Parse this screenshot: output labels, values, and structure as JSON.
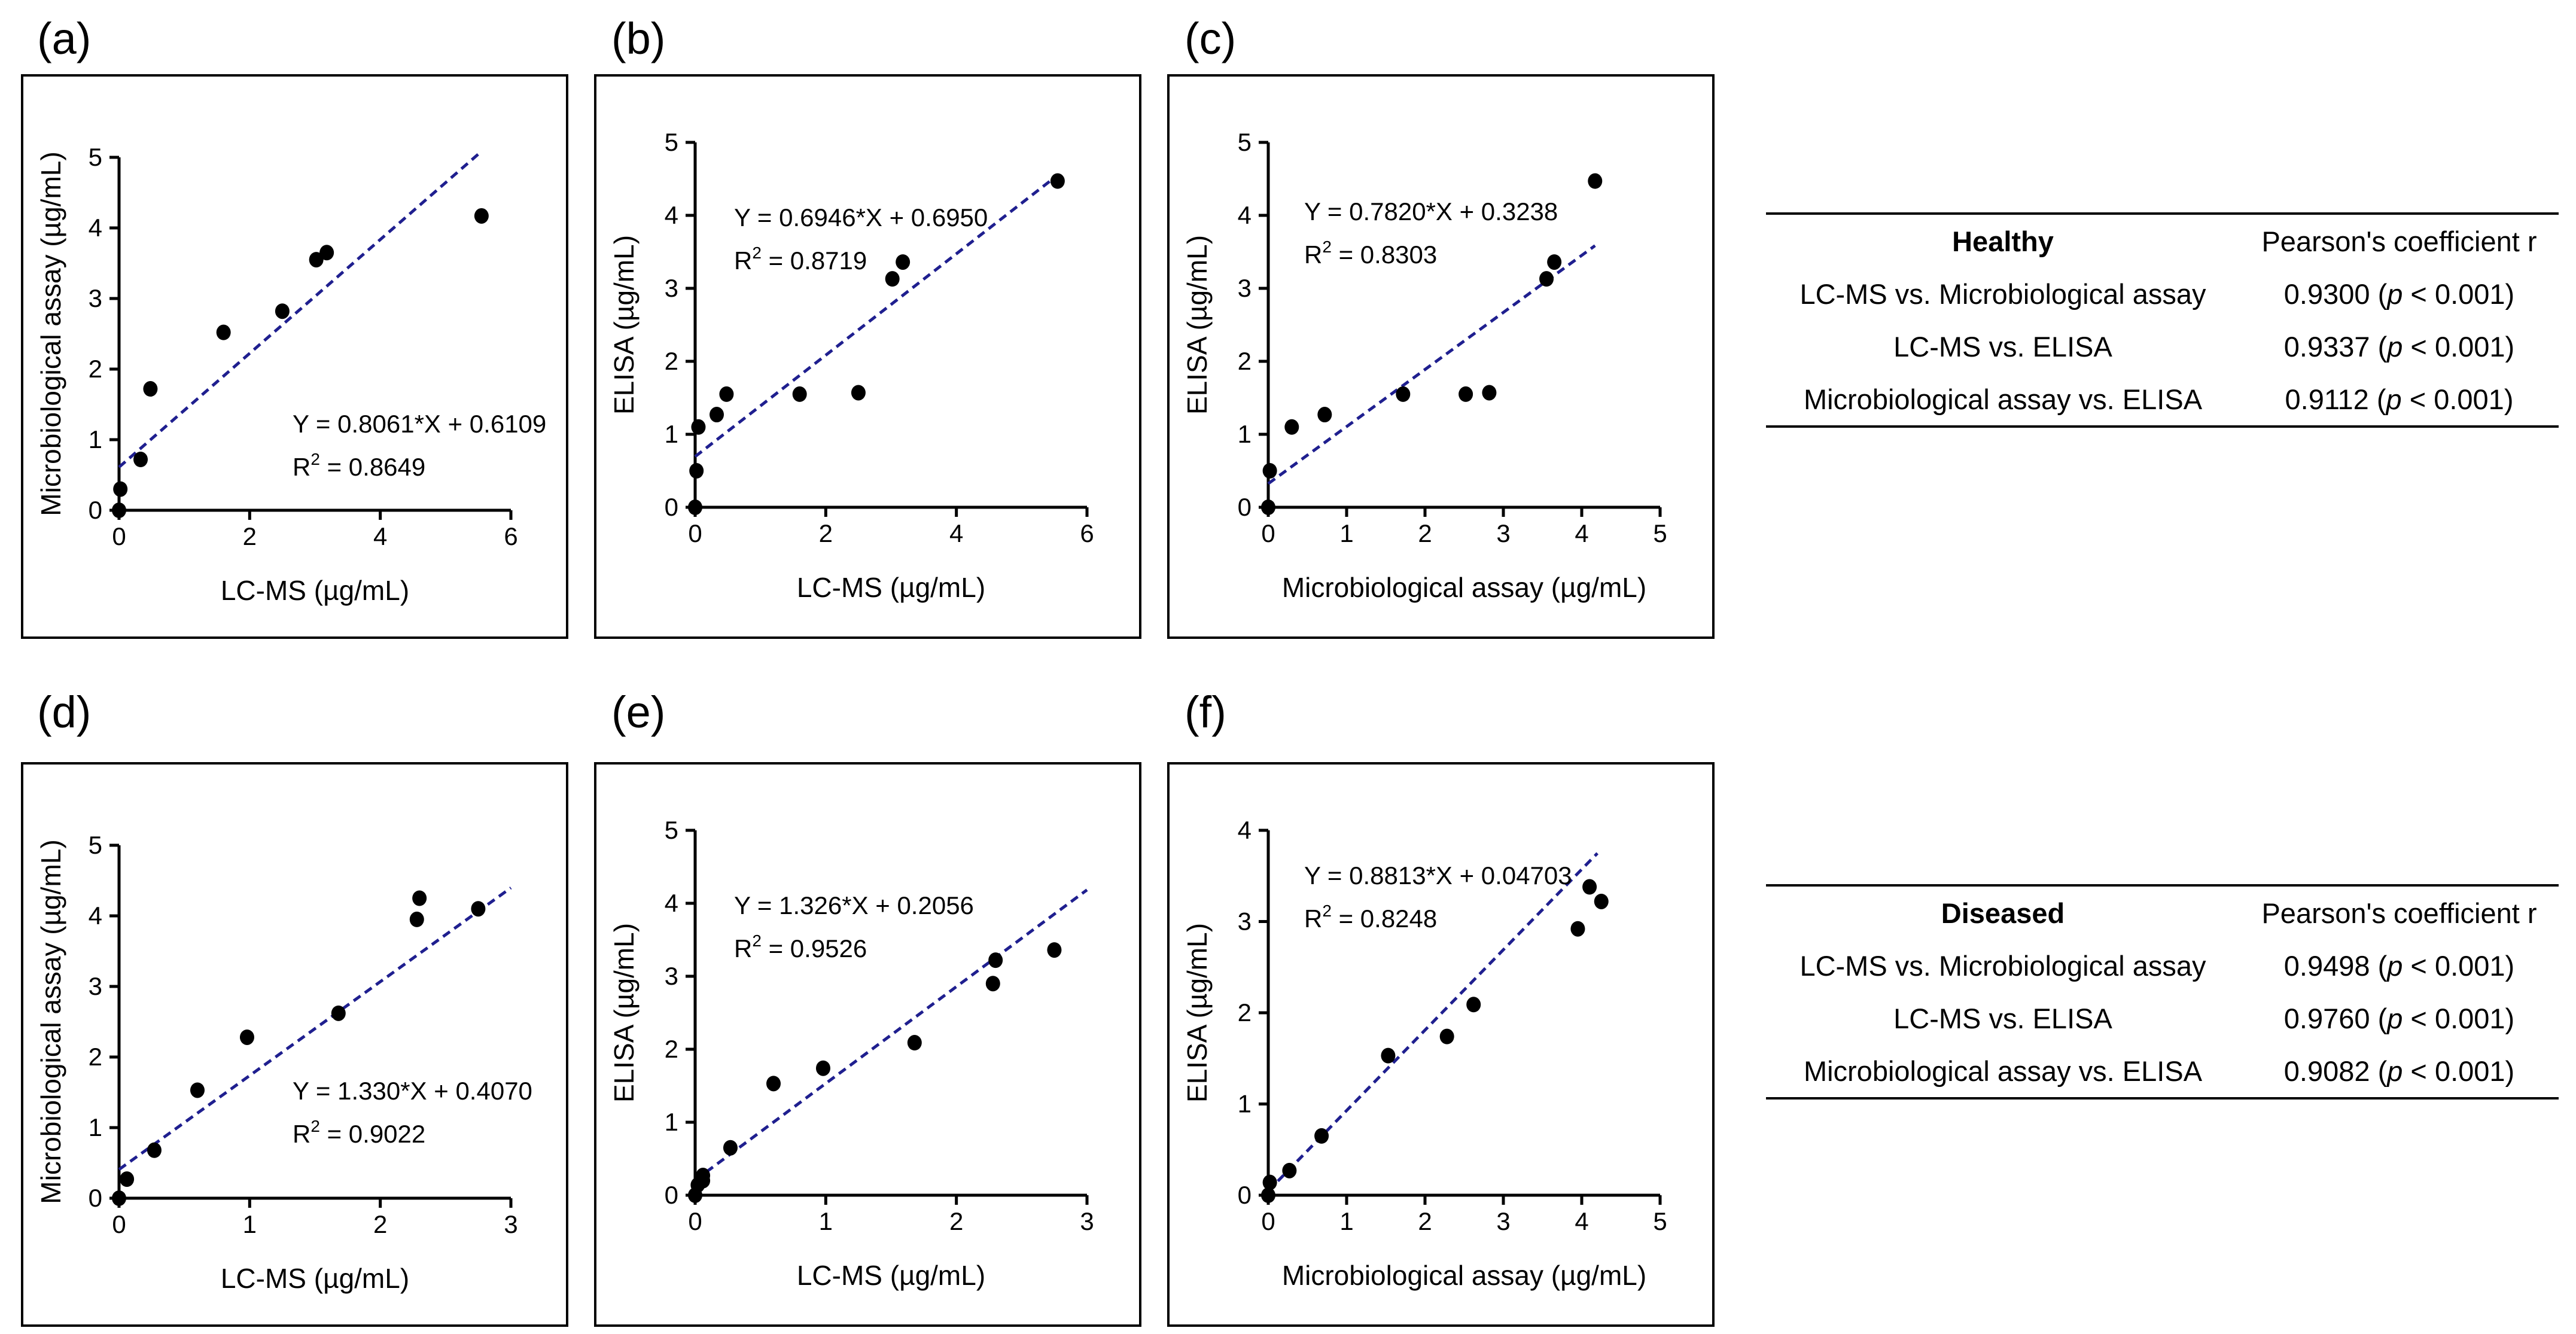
{
  "chart_data": [
    {
      "id": "a",
      "letter": "(a)",
      "type": "scatter",
      "xlabel": "LC-MS (µg/mL)",
      "ylabel": "Microbiological assay (µg/mL)",
      "xlim": [
        0,
        6
      ],
      "ylim": [
        0,
        5
      ],
      "xticks": [
        0,
        2,
        4,
        6
      ],
      "yticks": [
        0,
        1,
        2,
        3,
        4,
        5
      ],
      "points": [
        [
          0,
          0
        ],
        [
          0.02,
          0.3
        ],
        [
          0.33,
          0.72
        ],
        [
          0.48,
          1.72
        ],
        [
          1.6,
          2.52
        ],
        [
          2.5,
          2.82
        ],
        [
          3.02,
          3.55
        ],
        [
          3.18,
          3.65
        ],
        [
          5.55,
          4.17
        ]
      ],
      "fit": {
        "slope": 0.8061,
        "intercept": 0.6109,
        "x_range": [
          0,
          5.5
        ]
      },
      "equation": "Y = 0.8061*X + 0.6109",
      "r2_label": "R",
      "r2_value": " = 0.8649"
    },
    {
      "id": "b",
      "letter": "(b)",
      "type": "scatter",
      "xlabel": "LC-MS (µg/mL)",
      "ylabel": "ELISA (µg/mL)",
      "xlim": [
        0,
        6
      ],
      "ylim": [
        0,
        5
      ],
      "xticks": [
        0,
        2,
        4,
        6
      ],
      "yticks": [
        0,
        1,
        2,
        3,
        4,
        5
      ],
      "points": [
        [
          0,
          0
        ],
        [
          0.02,
          0.5
        ],
        [
          0.05,
          1.1
        ],
        [
          0.33,
          1.27
        ],
        [
          0.48,
          1.55
        ],
        [
          1.6,
          1.55
        ],
        [
          2.5,
          1.57
        ],
        [
          3.02,
          3.13
        ],
        [
          3.18,
          3.36
        ],
        [
          5.55,
          4.47
        ]
      ],
      "fit": {
        "slope": 0.6946,
        "intercept": 0.695,
        "x_range": [
          0,
          5.55
        ]
      },
      "equation": "Y = 0.6946*X + 0.6950",
      "r2_label": "R",
      "r2_value": " = 0.8719"
    },
    {
      "id": "c",
      "letter": "(c)",
      "type": "scatter",
      "xlabel": "Microbiological assay (µg/mL)",
      "ylabel": "ELISA (µg/mL)",
      "xlim": [
        0,
        5
      ],
      "ylim": [
        0,
        5
      ],
      "xticks": [
        0,
        1,
        2,
        3,
        4,
        5
      ],
      "yticks": [
        0,
        1,
        2,
        3,
        4,
        5
      ],
      "points": [
        [
          0,
          0
        ],
        [
          0.02,
          0.5
        ],
        [
          0.3,
          1.1
        ],
        [
          0.72,
          1.27
        ],
        [
          1.72,
          1.55
        ],
        [
          2.52,
          1.55
        ],
        [
          2.82,
          1.57
        ],
        [
          3.55,
          3.13
        ],
        [
          3.65,
          3.36
        ],
        [
          4.17,
          4.47
        ]
      ],
      "fit": {
        "slope": 0.782,
        "intercept": 0.3238,
        "x_range": [
          0,
          4.17
        ]
      },
      "equation": "Y = 0.7820*X + 0.3238",
      "r2_label": "R",
      "r2_value": " = 0.8303"
    },
    {
      "id": "d",
      "letter": "(d)",
      "type": "scatter",
      "xlabel": "LC-MS (µg/mL)",
      "ylabel": "Microbiological assay (µg/mL)",
      "xlim": [
        0,
        3
      ],
      "ylim": [
        0,
        5
      ],
      "xticks": [
        0,
        1,
        2,
        3
      ],
      "yticks": [
        0,
        1,
        2,
        3,
        4,
        5
      ],
      "points": [
        [
          0,
          0
        ],
        [
          0.06,
          0.27
        ],
        [
          0.27,
          0.68
        ],
        [
          0.6,
          1.53
        ],
        [
          0.98,
          2.28
        ],
        [
          1.68,
          2.62
        ],
        [
          2.28,
          3.95
        ],
        [
          2.3,
          4.25
        ],
        [
          2.75,
          4.1
        ]
      ],
      "fit": {
        "slope": 1.33,
        "intercept": 0.407,
        "x_range": [
          0,
          3
        ]
      },
      "equation": "Y = 1.330*X + 0.4070",
      "r2_label": "R",
      "r2_value": " = 0.9022"
    },
    {
      "id": "e",
      "letter": "(e)",
      "type": "scatter",
      "xlabel": "LC-MS (µg/mL)",
      "ylabel": "ELISA (µg/mL)",
      "xlim": [
        0,
        3
      ],
      "ylim": [
        0,
        5
      ],
      "xticks": [
        0,
        1,
        2,
        3
      ],
      "yticks": [
        0,
        1,
        2,
        3,
        4,
        5
      ],
      "points": [
        [
          0,
          0
        ],
        [
          0.02,
          0.14
        ],
        [
          0.06,
          0.2
        ],
        [
          0.06,
          0.27
        ],
        [
          0.27,
          0.65
        ],
        [
          0.6,
          1.53
        ],
        [
          0.98,
          1.74
        ],
        [
          1.68,
          2.09
        ],
        [
          2.28,
          2.9
        ],
        [
          2.3,
          3.22
        ],
        [
          2.75,
          3.36
        ]
      ],
      "fit": {
        "slope": 1.326,
        "intercept": 0.2056,
        "x_range": [
          0,
          3
        ]
      },
      "equation": "Y = 1.326*X + 0.2056",
      "r2_label": "R",
      "r2_value": " = 0.9526"
    },
    {
      "id": "f",
      "letter": "(f)",
      "type": "scatter",
      "xlabel": "Microbiological assay (µg/mL)",
      "ylabel": "ELISA (µg/mL)",
      "xlim": [
        0,
        5
      ],
      "ylim": [
        0,
        4
      ],
      "xticks": [
        0,
        1,
        2,
        3,
        4,
        5
      ],
      "yticks": [
        0,
        1,
        2,
        3,
        4
      ],
      "points": [
        [
          0,
          0
        ],
        [
          0.02,
          0.14
        ],
        [
          0.27,
          0.27
        ],
        [
          0.68,
          0.65
        ],
        [
          1.53,
          1.53
        ],
        [
          2.28,
          1.74
        ],
        [
          2.62,
          2.09
        ],
        [
          3.95,
          2.92
        ],
        [
          4.1,
          3.38
        ],
        [
          4.25,
          3.22
        ]
      ],
      "fit": {
        "slope": 0.8813,
        "intercept": 0.04703,
        "x_range": [
          0,
          4.2
        ]
      },
      "equation": "Y = 0.8813*X + 0.04703",
      "r2_label": "R",
      "r2_value": " = 0.8248"
    }
  ],
  "tables": {
    "healthy": {
      "header": "Healthy",
      "col2": "Pearson's coefficient r",
      "rows": [
        {
          "label": "LC-MS vs. Microbiological assay",
          "value": "0.9300 (",
          "p": "p",
          "rest": " < 0.001)"
        },
        {
          "label": "LC-MS vs. ELISA",
          "value": "0.9337 (",
          "p": "p",
          "rest": " < 0.001)"
        },
        {
          "label": "Microbiological assay vs. ELISA",
          "value": "0.9112 (",
          "p": "p",
          "rest": " < 0.001)"
        }
      ]
    },
    "diseased": {
      "header": "Diseased",
      "col2": "Pearson's coefficient r",
      "rows": [
        {
          "label": "LC-MS vs. Microbiological assay",
          "value": "0.9498 (",
          "p": "p",
          "rest": " < 0.001)"
        },
        {
          "label": "LC-MS vs. ELISA",
          "value": "0.9760 (",
          "p": "p",
          "rest": " < 0.001)"
        },
        {
          "label": "Microbiological assay vs. ELISA",
          "value": "0.9082 (",
          "p": "p",
          "rest": " < 0.001)"
        }
      ]
    }
  },
  "colors": {
    "fit_line": "#1f1f8f",
    "points": "#000000",
    "axis": "#000000"
  }
}
